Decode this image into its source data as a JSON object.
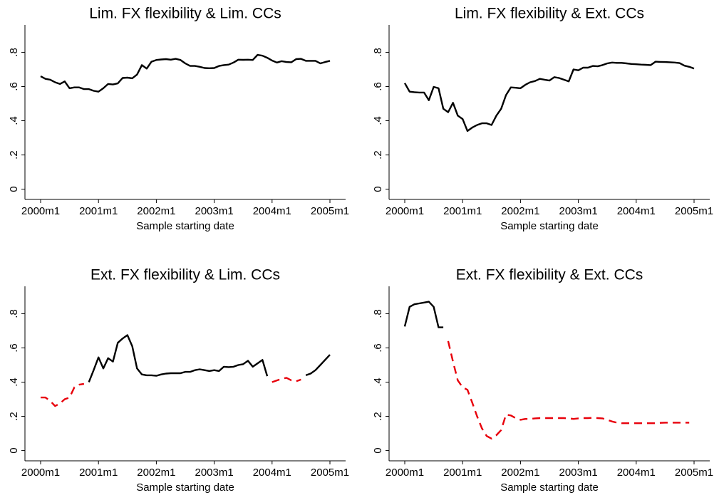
{
  "chart_data": [
    {
      "type": "line",
      "title": "Lim. FX flexibility & Lim. CCs",
      "x_label": "Sample starting date",
      "x": [
        "2000m1",
        "2000m2",
        "2000m3",
        "2000m4",
        "2000m5",
        "2000m6",
        "2000m7",
        "2000m8",
        "2000m9",
        "2000m10",
        "2000m11",
        "2000m12",
        "2001m1",
        "2001m2",
        "2001m3",
        "2001m4",
        "2001m5",
        "2001m6",
        "2001m7",
        "2001m8",
        "2001m9",
        "2001m10",
        "2001m11",
        "2001m12",
        "2002m1",
        "2002m2",
        "2002m3",
        "2002m4",
        "2002m5",
        "2002m6",
        "2002m7",
        "2002m8",
        "2002m9",
        "2002m10",
        "2002m11",
        "2002m12",
        "2003m1",
        "2003m2",
        "2003m3",
        "2003m4",
        "2003m5",
        "2003m6",
        "2003m7",
        "2003m8",
        "2003m9",
        "2003m10",
        "2003m11",
        "2003m12",
        "2004m1",
        "2004m2",
        "2004m3",
        "2004m4",
        "2004m5",
        "2004m6",
        "2004m7",
        "2004m8",
        "2004m9",
        "2004m10",
        "2004m11",
        "2004m12",
        "2005m1"
      ],
      "series": [
        {
          "color": "#000000",
          "dashed": false,
          "values": [
            0.66,
            0.645,
            0.64,
            0.625,
            0.615,
            0.63,
            0.59,
            0.595,
            0.595,
            0.585,
            0.585,
            0.575,
            0.57,
            0.59,
            0.615,
            0.612,
            0.618,
            0.65,
            0.652,
            0.648,
            0.67,
            0.725,
            0.705,
            0.745,
            0.755,
            0.758,
            0.76,
            0.757,
            0.762,
            0.755,
            0.735,
            0.72,
            0.72,
            0.715,
            0.708,
            0.707,
            0.708,
            0.72,
            0.725,
            0.728,
            0.74,
            0.757,
            0.756,
            0.757,
            0.755,
            0.785,
            0.78,
            0.768,
            0.752,
            0.74,
            0.748,
            0.743,
            0.742,
            0.76,
            0.762,
            0.75,
            0.75,
            0.75,
            0.735,
            0.743,
            0.75
          ]
        }
      ],
      "xlim": [
        "2000m1",
        "2005m1"
      ],
      "xticks": [
        "2000m1",
        "2001m1",
        "2002m1",
        "2003m1",
        "2004m1",
        "2005m1"
      ],
      "ylim": [
        -0.06,
        0.96
      ],
      "yticks": [
        0,
        {
          "value": 0.2,
          "label": ".2"
        },
        {
          "value": 0.4,
          "label": ".4"
        },
        {
          "value": 0.6,
          "label": ".6"
        },
        {
          "value": 0.8,
          "label": ".8"
        }
      ]
    },
    {
      "type": "line",
      "title": "Lim. FX flexibility & Ext. CCs",
      "x_label": "Sample starting date",
      "x": [
        "2000m1",
        "2000m2",
        "2000m3",
        "2000m4",
        "2000m5",
        "2000m6",
        "2000m7",
        "2000m8",
        "2000m9",
        "2000m10",
        "2000m11",
        "2000m12",
        "2001m1",
        "2001m2",
        "2001m3",
        "2001m4",
        "2001m5",
        "2001m6",
        "2001m7",
        "2001m8",
        "2001m9",
        "2001m10",
        "2001m11",
        "2001m12",
        "2002m1",
        "2002m2",
        "2002m3",
        "2002m4",
        "2002m5",
        "2002m6",
        "2002m7",
        "2002m8",
        "2002m9",
        "2002m10",
        "2002m11",
        "2002m12",
        "2003m1",
        "2003m2",
        "2003m3",
        "2003m4",
        "2003m5",
        "2003m6",
        "2003m7",
        "2003m8",
        "2003m9",
        "2003m10",
        "2003m11",
        "2003m12",
        "2004m1",
        "2004m2",
        "2004m3",
        "2004m4",
        "2004m5",
        "2004m6",
        "2004m7",
        "2004m8",
        "2004m9",
        "2004m10",
        "2004m11",
        "2004m12",
        "2005m1"
      ],
      "series": [
        {
          "color": "#000000",
          "dashed": false,
          "values": [
            0.62,
            0.57,
            0.567,
            0.565,
            0.565,
            0.52,
            0.598,
            0.59,
            0.47,
            0.45,
            0.505,
            0.43,
            0.41,
            0.34,
            0.36,
            0.375,
            0.385,
            0.385,
            0.375,
            0.43,
            0.47,
            0.55,
            0.595,
            0.593,
            0.59,
            0.61,
            0.625,
            0.632,
            0.645,
            0.64,
            0.635,
            0.655,
            0.65,
            0.64,
            0.63,
            0.7,
            0.695,
            0.71,
            0.71,
            0.72,
            0.718,
            0.725,
            0.735,
            0.74,
            0.738,
            0.738,
            0.735,
            0.732,
            0.73,
            0.728,
            0.727,
            0.725,
            0.745,
            0.744,
            0.743,
            0.742,
            0.74,
            0.737,
            0.722,
            0.715,
            0.705
          ]
        }
      ],
      "xlim": [
        "2000m1",
        "2005m1"
      ],
      "xticks": [
        "2000m1",
        "2001m1",
        "2002m1",
        "2003m1",
        "2004m1",
        "2005m1"
      ],
      "ylim": [
        -0.06,
        0.96
      ],
      "yticks": [
        0,
        {
          "value": 0.2,
          "label": ".2"
        },
        {
          "value": 0.4,
          "label": ".4"
        },
        {
          "value": 0.6,
          "label": ".6"
        },
        {
          "value": 0.8,
          "label": ".8"
        }
      ]
    },
    {
      "type": "line",
      "title": "Ext. FX flexibility & Lim. CCs",
      "x_label": "Sample starting date",
      "x": [
        "2000m1",
        "2000m2",
        "2000m3",
        "2000m4",
        "2000m5",
        "2000m6",
        "2000m7",
        "2000m8",
        "2000m9",
        "2000m10",
        "2000m11",
        "2000m12",
        "2001m1",
        "2001m2",
        "2001m3",
        "2001m4",
        "2001m5",
        "2001m6",
        "2001m7",
        "2001m8",
        "2001m9",
        "2001m10",
        "2001m11",
        "2001m12",
        "2002m1",
        "2002m2",
        "2002m3",
        "2002m4",
        "2002m5",
        "2002m6",
        "2002m7",
        "2002m8",
        "2002m9",
        "2002m10",
        "2002m11",
        "2002m12",
        "2003m1",
        "2003m2",
        "2003m3",
        "2003m4",
        "2003m5",
        "2003m6",
        "2003m7",
        "2003m8",
        "2003m9",
        "2003m10",
        "2003m11",
        "2003m12",
        "2004m1",
        "2004m2",
        "2004m3",
        "2004m4",
        "2004m5",
        "2004m6",
        "2004m7",
        "2004m8",
        "2004m9",
        "2004m10",
        "2004m11",
        "2004m12",
        "2005m1"
      ],
      "series": [
        {
          "color": "#000000",
          "dashed": false,
          "values": [
            null,
            null,
            null,
            null,
            null,
            null,
            null,
            null,
            null,
            null,
            0.4,
            0.47,
            0.545,
            0.48,
            0.54,
            0.52,
            0.63,
            0.655,
            0.675,
            0.61,
            0.48,
            0.445,
            0.44,
            0.44,
            0.437,
            0.445,
            0.45,
            0.452,
            0.452,
            0.452,
            0.46,
            0.46,
            0.47,
            0.475,
            0.47,
            0.465,
            0.47,
            0.465,
            0.49,
            0.488,
            0.49,
            0.5,
            0.505,
            0.525,
            0.49,
            0.51,
            0.53,
            0.435,
            null,
            null,
            null,
            null,
            null,
            null,
            null,
            0.44,
            0.45,
            0.47,
            0.5,
            0.53,
            0.56
          ]
        },
        {
          "color": "#e8000b",
          "dashed": true,
          "values": [
            0.31,
            0.31,
            0.29,
            0.26,
            0.275,
            0.3,
            0.31,
            0.37,
            0.385,
            0.39,
            null,
            null,
            null,
            null,
            null,
            null,
            null,
            null,
            null,
            null,
            null,
            null,
            null,
            null,
            null,
            null,
            null,
            null,
            null,
            null,
            null,
            null,
            null,
            null,
            null,
            null,
            null,
            null,
            null,
            null,
            null,
            null,
            null,
            null,
            null,
            null,
            null,
            null,
            0.4,
            0.41,
            0.42,
            0.425,
            0.41,
            0.405,
            0.415,
            null,
            null,
            null,
            null,
            null,
            null
          ]
        }
      ],
      "xlim": [
        "2000m1",
        "2005m1"
      ],
      "xticks": [
        "2000m1",
        "2001m1",
        "2002m1",
        "2003m1",
        "2004m1",
        "2005m1"
      ],
      "ylim": [
        -0.06,
        0.96
      ],
      "yticks": [
        0,
        {
          "value": 0.2,
          "label": ".2"
        },
        {
          "value": 0.4,
          "label": ".4"
        },
        {
          "value": 0.6,
          "label": ".6"
        },
        {
          "value": 0.8,
          "label": ".8"
        }
      ]
    },
    {
      "type": "line",
      "title": "Ext. FX flexibility & Ext. CCs",
      "x_label": "Sample starting date",
      "x": [
        "2000m1",
        "2000m2",
        "2000m3",
        "2000m4",
        "2000m5",
        "2000m6",
        "2000m7",
        "2000m8",
        "2000m9",
        "2000m10",
        "2000m11",
        "2000m12",
        "2001m1",
        "2001m2",
        "2001m3",
        "2001m4",
        "2001m5",
        "2001m6",
        "2001m7",
        "2001m8",
        "2001m9",
        "2001m10",
        "2001m11",
        "2001m12",
        "2002m1",
        "2002m2",
        "2002m3",
        "2002m4",
        "2002m5",
        "2002m6",
        "2002m7",
        "2002m8",
        "2002m9",
        "2002m10",
        "2002m11",
        "2002m12",
        "2003m1",
        "2003m2",
        "2003m3",
        "2003m4",
        "2003m5",
        "2003m6",
        "2003m7",
        "2003m8",
        "2003m9",
        "2003m10",
        "2003m11",
        "2003m12",
        "2004m1",
        "2004m2",
        "2004m3",
        "2004m4",
        "2004m5",
        "2004m6",
        "2004m7",
        "2004m8",
        "2004m9",
        "2004m10",
        "2004m11",
        "2004m12",
        "2005m1"
      ],
      "series": [
        {
          "color": "#000000",
          "dashed": false,
          "values": [
            0.725,
            0.84,
            0.855,
            0.86,
            0.865,
            0.87,
            0.84,
            0.72,
            0.72,
            null,
            null,
            null,
            null,
            null,
            null,
            null,
            null,
            null,
            null,
            null,
            null,
            null,
            null,
            null,
            null,
            null,
            null,
            null,
            null,
            null,
            null,
            null,
            null,
            null,
            null,
            null,
            null,
            null,
            null,
            null,
            null,
            null,
            null,
            null,
            null,
            null,
            null,
            null,
            null,
            null,
            null,
            null,
            null,
            null,
            null,
            null,
            null,
            null,
            null,
            null,
            null
          ]
        },
        {
          "color": "#e8000b",
          "dashed": true,
          "values": [
            null,
            null,
            null,
            null,
            null,
            null,
            null,
            null,
            null,
            0.64,
            0.52,
            0.41,
            0.37,
            0.355,
            0.28,
            0.2,
            0.13,
            0.085,
            0.07,
            0.09,
            0.12,
            0.21,
            0.205,
            0.19,
            0.18,
            0.185,
            0.185,
            0.188,
            0.19,
            0.19,
            0.19,
            0.19,
            0.19,
            0.19,
            0.188,
            0.185,
            0.188,
            0.19,
            0.19,
            0.192,
            0.19,
            0.188,
            0.18,
            0.17,
            0.163,
            0.16,
            0.16,
            0.16,
            0.16,
            0.16,
            0.16,
            0.16,
            0.16,
            0.162,
            0.163,
            0.163,
            0.163,
            0.163,
            0.163,
            0.163,
            null
          ]
        }
      ],
      "xlim": [
        "2000m1",
        "2005m1"
      ],
      "xticks": [
        "2000m1",
        "2001m1",
        "2002m1",
        "2003m1",
        "2004m1",
        "2005m1"
      ],
      "ylim": [
        -0.06,
        0.96
      ],
      "yticks": [
        0,
        {
          "value": 0.2,
          "label": ".2"
        },
        {
          "value": 0.4,
          "label": ".4"
        },
        {
          "value": 0.6,
          "label": ".6"
        },
        {
          "value": 0.8,
          "label": ".8"
        }
      ]
    }
  ]
}
